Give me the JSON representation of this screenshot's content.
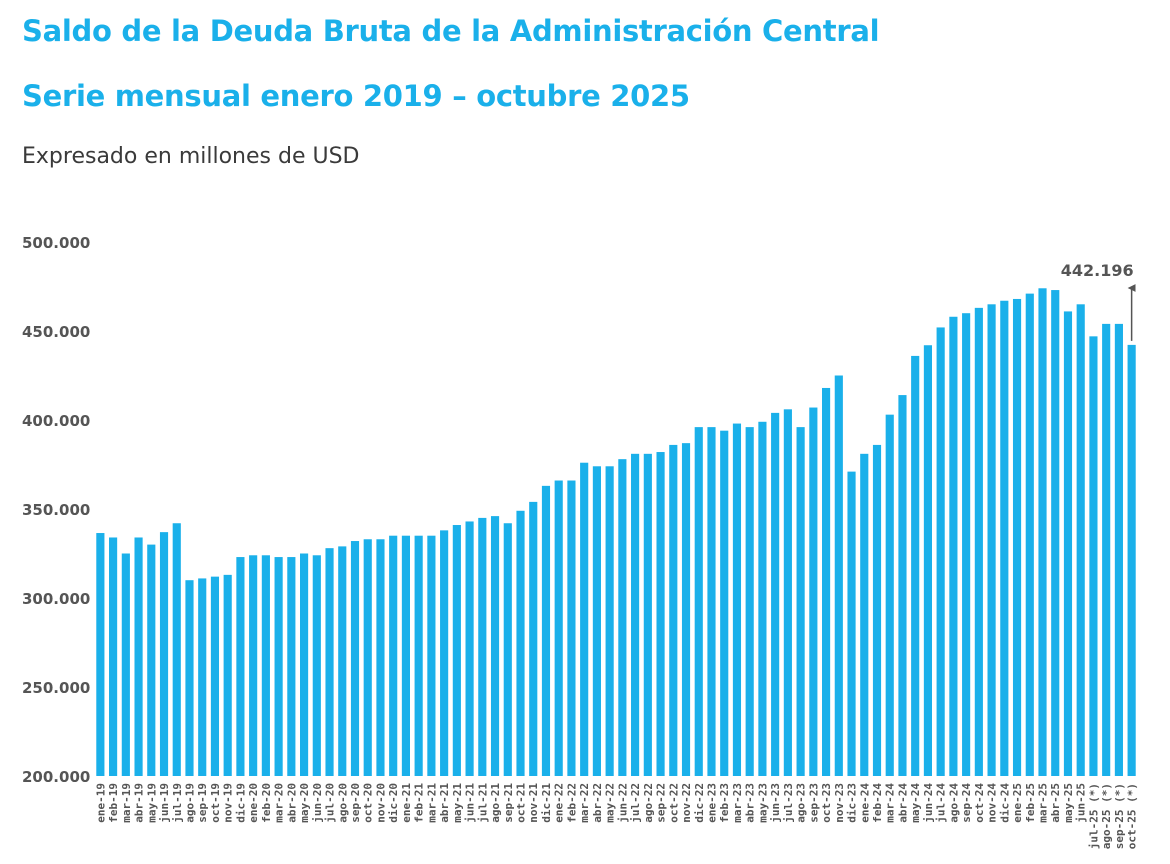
{
  "header": {
    "title": "Saldo de la Deuda Bruta de la Administración Central",
    "subtitle": "Serie mensual enero 2019 – octubre 2025",
    "unit_note": "Expresado en millones de USD"
  },
  "colors": {
    "bar": "#1ab0ea",
    "title": "#1ab0ea",
    "axis_text": "#555555",
    "annotation": "#555555"
  },
  "chart_data": {
    "type": "bar",
    "title": "",
    "xlabel": "",
    "ylabel": "",
    "ylim": [
      200000,
      500000
    ],
    "grid": false,
    "yticks": [
      {
        "value": 200000,
        "label": "200.000"
      },
      {
        "value": 250000,
        "label": "250.000"
      },
      {
        "value": 300000,
        "label": "300.000"
      },
      {
        "value": 350000,
        "label": "350.000"
      },
      {
        "value": 400000,
        "label": "400.000"
      },
      {
        "value": 450000,
        "label": "450.000"
      },
      {
        "value": 500000,
        "label": "500.000"
      }
    ],
    "categories": [
      "ene-19",
      "feb-19",
      "mar-19",
      "abr-19",
      "may-19",
      "jun-19",
      "jul-19",
      "ago-19",
      "sep-19",
      "oct-19",
      "nov-19",
      "dic-19",
      "ene-20",
      "feb-20",
      "mar-20",
      "abr-20",
      "may-20",
      "jun-20",
      "jul-20",
      "ago-20",
      "sep-20",
      "oct-20",
      "nov-20",
      "dic-20",
      "ene-21",
      "feb-21",
      "mar-21",
      "abr-21",
      "may-21",
      "jun-21",
      "jul-21",
      "ago-21",
      "sep-21",
      "oct-21",
      "nov-21",
      "dic-21",
      "ene-22",
      "feb-22",
      "mar-22",
      "abr-22",
      "may-22",
      "jun-22",
      "jul-22",
      "ago-22",
      "sep-22",
      "oct-22",
      "nov-22",
      "dic-22",
      "ene-23",
      "feb-23",
      "mar-23",
      "abr-23",
      "may-23",
      "jun-23",
      "jul-23",
      "ago-23",
      "sep-23",
      "oct-23",
      "nov-23",
      "dic-23",
      "ene-24",
      "feb-24",
      "mar-24",
      "abr-24",
      "may-24",
      "jun-24",
      "jul-24",
      "ago-24",
      "sep-24",
      "oct-24",
      "nov-24",
      "dic-24",
      "ene-25",
      "feb-25",
      "mar-25",
      "abr-25",
      "may-25",
      "jun-25",
      "jul-25 (*)",
      "ago-25 (*)",
      "sep-25 (*)",
      "oct-25 (*)"
    ],
    "values": [
      336500,
      334000,
      325000,
      334000,
      330000,
      337000,
      342000,
      310000,
      311000,
      312000,
      313000,
      323000,
      324000,
      324000,
      323000,
      323000,
      325000,
      324000,
      328000,
      329000,
      332000,
      333000,
      333000,
      335000,
      335000,
      335000,
      335000,
      338000,
      341000,
      343000,
      345000,
      346000,
      342000,
      349000,
      354000,
      363000,
      366000,
      366000,
      376000,
      374000,
      374000,
      378000,
      381000,
      381000,
      382000,
      386000,
      387000,
      396000,
      396000,
      394000,
      398000,
      396000,
      399000,
      404000,
      406000,
      396000,
      407000,
      418000,
      425000,
      371000,
      381000,
      386000,
      403000,
      414000,
      436000,
      442000,
      452000,
      458000,
      460000,
      463000,
      465000,
      467000,
      468000,
      471000,
      474000,
      473000,
      461000,
      465000,
      447000,
      454000,
      454000,
      442196
    ],
    "annotation": {
      "label": "442.196",
      "category": "oct-25 (*)"
    }
  }
}
